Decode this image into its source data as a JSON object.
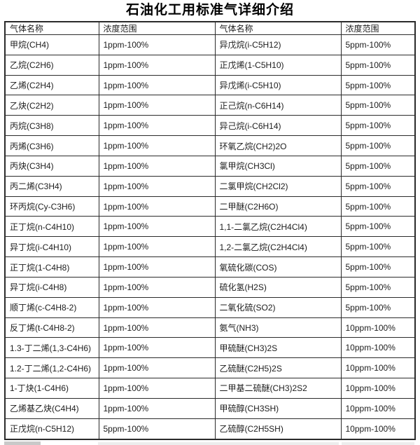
{
  "page": {
    "title": "石油化工用标准气详细介绍"
  },
  "colors": {
    "background": "#ffffff",
    "table_border": "#2b2b2b",
    "text": "#1c1c1c",
    "title_text": "#000000",
    "partial_strip_gray": "#c9c9c9",
    "partial_strip_light": "#ededed"
  },
  "table": {
    "headers": [
      "气体名称",
      "浓度范围",
      "气体名称",
      "浓度范围"
    ],
    "rows": [
      {
        "c": [
          "甲烷(CH4)",
          "1ppm-100%",
          "异戊烷(i-C5H12)",
          "5ppm-100%"
        ]
      },
      {
        "c": [
          "乙烷(C2H6)",
          "1ppm-100%",
          "正戊烯(1-C5H10)",
          "5ppm-100%"
        ]
      },
      {
        "c": [
          "乙烯(C2H4)",
          "1ppm-100%",
          "异戊烯(i-C5H10)",
          "5ppm-100%"
        ]
      },
      {
        "c": [
          "乙炔(C2H2)",
          "1ppm-100%",
          "正己烷(n-C6H14)",
          "5ppm-100%"
        ]
      },
      {
        "c": [
          "丙烷(C3H8)",
          "1ppm-100%",
          "异己烷(i-C6H14)",
          "5ppm-100%"
        ]
      },
      {
        "c": [
          "丙烯(C3H6)",
          "1ppm-100%",
          "环氧乙烷(CH2)2O",
          "5ppm-100%"
        ]
      },
      {
        "c": [
          "丙炔(C3H4)",
          "1ppm-100%",
          "氯甲烷(CH3Cl)",
          "5ppm-100%"
        ]
      },
      {
        "c": [
          "丙二烯(C3H4)",
          "1ppm-100%",
          "二氯甲烷(CH2Cl2)",
          "5ppm-100%"
        ]
      },
      {
        "c": [
          "环丙烷(Cy-C3H6)",
          "1ppm-100%",
          "二甲醚(C2H6O)",
          "5ppm-100%"
        ]
      },
      {
        "c": [
          "正丁烷(n-C4H10)",
          "1ppm-100%",
          "1,1-二氯乙烷(C2H4Cl4)",
          "5ppm-100%"
        ]
      },
      {
        "c": [
          "异丁烷(i-C4H10)",
          "1ppm-100%",
          "1,2-二氯乙烷(C2H4Cl4)",
          "5ppm-100%"
        ]
      },
      {
        "c": [
          "正丁烷(1-C4H8)",
          "1ppm-100%",
          "氧硫化碳(COS)",
          "5ppm-100%"
        ]
      },
      {
        "c": [
          "异丁烷(i-C4H8)",
          "1ppm-100%",
          "硫化氢(H2S)",
          "5ppm-100%"
        ]
      },
      {
        "c": [
          "顺丁烯(c-C4H8-2)",
          "1ppm-100%",
          "二氧化硫(SO2)",
          "5ppm-100%"
        ]
      },
      {
        "c": [
          "反丁烯(t-C4H8-2)",
          "1ppm-100%",
          "氨气(NH3)",
          "10ppm-100%"
        ]
      },
      {
        "c": [
          "1.3-丁二烯(1,3-C4H6)",
          "1ppm-100%",
          "甲硫醚(CH3)2S",
          "10ppm-100%"
        ]
      },
      {
        "c": [
          "1.2-丁二烯(1,2-C4H6)",
          "1ppm-100%",
          "乙硫醚(C2H5)2S",
          "10ppm-100%"
        ]
      },
      {
        "c": [
          "1-丁炔(1-C4H6)",
          "1ppm-100%",
          "二甲基二硫醚(CH3)2S2",
          "10ppm-100%"
        ]
      },
      {
        "c": [
          "乙烯基乙炔(C4H4)",
          "1ppm-100%",
          "甲硫醇(CH3SH)",
          "10ppm-100%"
        ]
      },
      {
        "c": [
          "正戊烷(n-C5H12)",
          "5ppm-100%",
          "乙硫醇(C2H5SH)",
          "10ppm-100%"
        ]
      }
    ]
  }
}
